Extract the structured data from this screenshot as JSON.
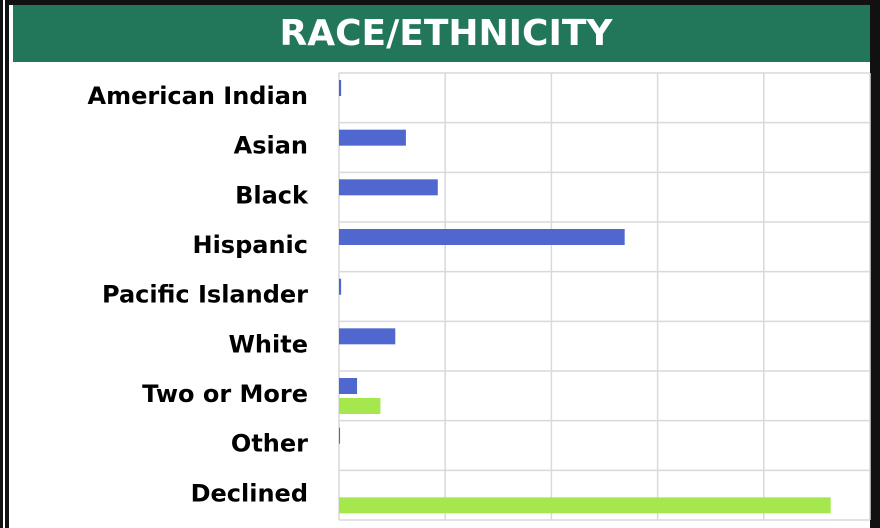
{
  "chart_data": {
    "type": "bar",
    "orientation": "horizontal",
    "title": "RACE/ETHNICITY",
    "categories": [
      "American Indian",
      "Asian",
      "Black",
      "Hispanic",
      "Pacific Islander",
      "White",
      "Two or More",
      "Other",
      "Declined"
    ],
    "series": [
      {
        "color": "#4f67cf",
        "values": [
          0.02,
          0.63,
          0.93,
          2.69,
          0.02,
          0.53,
          0.17,
          0.01,
          0
        ]
      },
      {
        "color": "#a4e84e",
        "values": [
          0,
          0,
          0,
          0,
          0,
          0,
          0.39,
          0,
          4.63
        ]
      }
    ],
    "xlim": [
      0,
      5
    ],
    "xticks": [
      0,
      1,
      2,
      3,
      4,
      5
    ],
    "grid": true
  }
}
